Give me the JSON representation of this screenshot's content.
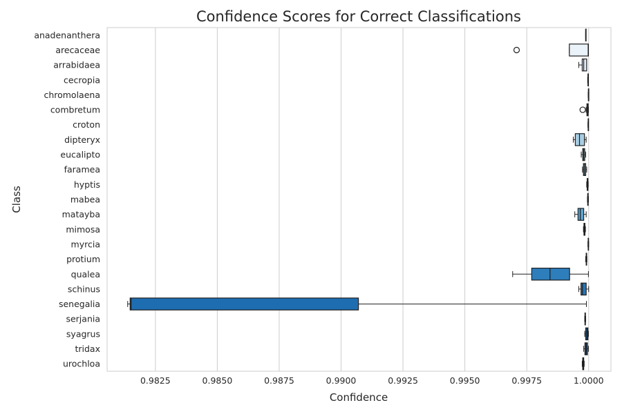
{
  "chart_data": {
    "type": "box",
    "orientation": "horizontal",
    "title": "Confidence Scores for Correct Classifications",
    "xlabel": "Confidence",
    "ylabel": "Class",
    "xlim": [
      0.98055,
      1.0009
    ],
    "xticks": [
      0.9825,
      0.985,
      0.9875,
      0.99,
      0.9925,
      0.995,
      0.9975,
      1.0
    ],
    "xtick_labels": [
      "0.9825",
      "0.9850",
      "0.9875",
      "0.9900",
      "0.9925",
      "0.9950",
      "0.9975",
      "1.0000"
    ],
    "grid": true,
    "categories": [
      "anadenanthera",
      "arecaceae",
      "arrabidaea",
      "cecropia",
      "chromolaena",
      "combretum",
      "croton",
      "dipteryx",
      "eucalipto",
      "faramea",
      "hyptis",
      "mabea",
      "matayba",
      "mimosa",
      "myrcia",
      "protium",
      "qualea",
      "schinus",
      "senegalia",
      "serjania",
      "syagrus",
      "tridax",
      "urochloa"
    ],
    "boxes": [
      {
        "category": "anadenanthera",
        "whislo": 0.99988,
        "q1": 0.99988,
        "med": 0.99988,
        "q3": 0.99988,
        "whishi": 0.99988,
        "fliers": [],
        "color": "#f6f9fd"
      },
      {
        "category": "arecaceae",
        "whislo": 0.99922,
        "q1": 0.99922,
        "med": 0.99998,
        "q3": 0.99999,
        "whishi": 0.99999,
        "fliers": [
          0.99709
        ],
        "color": "#eaf2fa"
      },
      {
        "category": "arrabidaea",
        "whislo": 0.9996,
        "q1": 0.99974,
        "med": 0.9998,
        "q3": 0.99992,
        "whishi": 0.99992,
        "fliers": [],
        "color": "#e0ecf8"
      },
      {
        "category": "cecropia",
        "whislo": 0.99996,
        "q1": 0.99997,
        "med": 0.99998,
        "q3": 0.99999,
        "whishi": 0.99999,
        "fliers": [],
        "color": "#d6e6f4"
      },
      {
        "category": "chromolaena",
        "whislo": 0.99998,
        "q1": 0.99999,
        "med": 0.99999,
        "q3": 0.99999,
        "whishi": 0.99999,
        "fliers": [],
        "color": "#cde0f1"
      },
      {
        "category": "combretum",
        "whislo": 0.9999,
        "q1": 0.99993,
        "med": 0.99996,
        "q3": 0.99998,
        "whishi": 0.99999,
        "fliers": [
          0.99976
        ],
        "color": "#c2d9ee"
      },
      {
        "category": "croton",
        "whislo": 0.99997,
        "q1": 0.99998,
        "med": 0.99998,
        "q3": 0.99999,
        "whishi": 0.99999,
        "fliers": [],
        "color": "#b7d4ea"
      },
      {
        "category": "dipteryx",
        "whislo": 0.99938,
        "q1": 0.99946,
        "med": 0.99963,
        "q3": 0.99983,
        "whishi": 0.9999,
        "fliers": [],
        "color": "#a8cee4"
      },
      {
        "category": "eucalipto",
        "whislo": 0.9997,
        "q1": 0.99976,
        "med": 0.9998,
        "q3": 0.99984,
        "whishi": 0.99988,
        "fliers": [],
        "color": "#9ac8e0"
      },
      {
        "category": "faramea",
        "whislo": 0.99975,
        "q1": 0.99979,
        "med": 0.99983,
        "q3": 0.99988,
        "whishi": 0.99992,
        "fliers": [],
        "color": "#8bc0dd"
      },
      {
        "category": "hyptis",
        "whislo": 0.99992,
        "q1": 0.99994,
        "med": 0.99995,
        "q3": 0.99997,
        "whishi": 0.99998,
        "fliers": [],
        "color": "#7bb7da"
      },
      {
        "category": "mabea",
        "whislo": 0.99995,
        "q1": 0.99996,
        "med": 0.99997,
        "q3": 0.99998,
        "whishi": 0.99999,
        "fliers": [],
        "color": "#6aaed6"
      },
      {
        "category": "matayba",
        "whislo": 0.99944,
        "q1": 0.99957,
        "med": 0.99966,
        "q3": 0.9998,
        "whishi": 0.9999,
        "fliers": [],
        "color": "#5ca4d0"
      },
      {
        "category": "mimosa",
        "whislo": 0.99979,
        "q1": 0.99981,
        "med": 0.99983,
        "q3": 0.99985,
        "whishi": 0.99987,
        "fliers": [],
        "color": "#4f9bcb"
      },
      {
        "category": "myrcia",
        "whislo": 0.99997,
        "q1": 0.99998,
        "med": 0.99999,
        "q3": 0.99999,
        "whishi": 1.0,
        "fliers": [],
        "color": "#4190c5"
      },
      {
        "category": "protium",
        "whislo": 0.99988,
        "q1": 0.9999,
        "med": 0.99991,
        "q3": 0.99992,
        "whishi": 0.99993,
        "fliers": [],
        "color": "#3686c0"
      },
      {
        "category": "qualea",
        "whislo": 0.99693,
        "q1": 0.9977,
        "med": 0.99844,
        "q3": 0.99923,
        "whishi": 0.99999,
        "fliers": [],
        "color": "#2e7ebc"
      },
      {
        "category": "schinus",
        "whislo": 0.9996,
        "q1": 0.99969,
        "med": 0.99975,
        "q3": 0.9999,
        "whishi": 1.0,
        "fliers": [],
        "color": "#2676b6"
      },
      {
        "category": "senegalia",
        "whislo": 0.98138,
        "q1": 0.98148,
        "med": 0.98152,
        "q3": 0.9907,
        "whishi": 0.99991,
        "fliers": [],
        "color": "#1f6db1"
      },
      {
        "category": "serjania",
        "whislo": 0.99984,
        "q1": 0.99985,
        "med": 0.99986,
        "q3": 0.99987,
        "whishi": 0.99988,
        "fliers": [],
        "color": "#1965aa"
      },
      {
        "category": "syagrus",
        "whislo": 0.99984,
        "q1": 0.99988,
        "med": 0.99993,
        "q3": 0.99997,
        "whishi": 0.99999,
        "fliers": [],
        "color": "#135da2"
      },
      {
        "category": "tridax",
        "whislo": 0.9998,
        "q1": 0.99985,
        "med": 0.9999,
        "q3": 0.99995,
        "whishi": 0.99999,
        "fliers": [],
        "color": "#0e5599"
      },
      {
        "category": "urochloa",
        "whislo": 0.99974,
        "q1": 0.99976,
        "med": 0.99978,
        "q3": 0.9998,
        "whishi": 0.99982,
        "fliers": [],
        "color": "#0a4d8f"
      }
    ]
  }
}
